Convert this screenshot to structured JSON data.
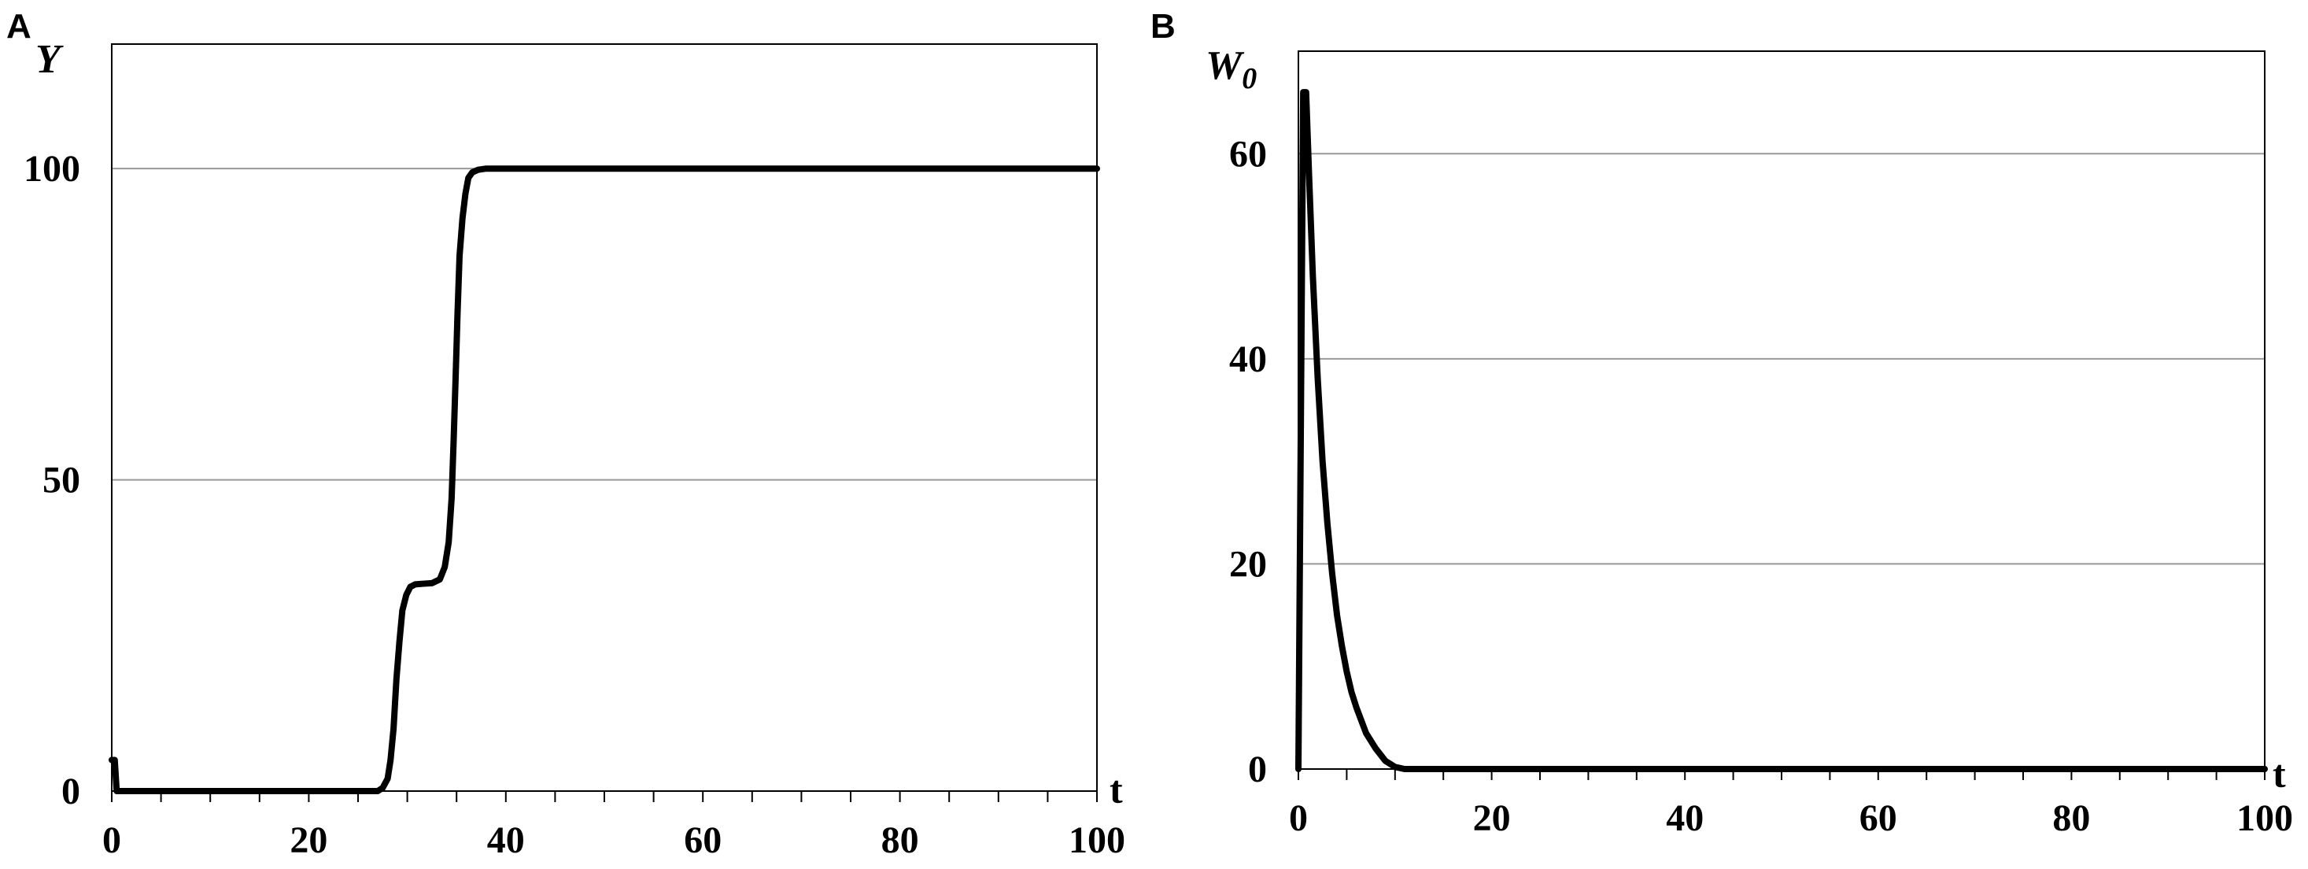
{
  "chart_data": [
    {
      "panel_label": "A",
      "type": "line",
      "title": "",
      "xlabel": "t",
      "ylabel": "Y",
      "xlim": [
        0,
        100
      ],
      "ylim": [
        0,
        100
      ],
      "ylim_display_max": 120,
      "x_ticks": [
        0,
        20,
        40,
        60,
        80,
        100
      ],
      "x_tick_labels": [
        "0",
        "20",
        "40",
        "60",
        "80",
        "100"
      ],
      "x_minor_step": 5,
      "y_ticks": [
        0,
        50,
        100
      ],
      "y_tick_labels": [
        "0",
        "50",
        "100"
      ],
      "grid": true,
      "line_color": "#000000",
      "grid_color": "#999999",
      "series": [
        {
          "x": [
            0,
            0.3,
            0.5,
            1,
            10,
            20,
            27,
            27.5,
            28,
            28.3,
            28.6,
            28.9,
            29.2,
            29.5,
            29.9,
            30.3,
            30.8,
            31.5,
            32.5,
            33.3,
            33.8,
            34.2,
            34.5,
            34.7,
            34.9,
            35.1,
            35.3,
            35.6,
            35.9,
            36.2,
            36.6,
            37.2,
            38,
            40,
            60,
            80,
            100
          ],
          "y": [
            5,
            5,
            0,
            0,
            0,
            0,
            0,
            0.5,
            2,
            5,
            10,
            18,
            24,
            29,
            31.5,
            32.8,
            33.2,
            33.3,
            33.4,
            34,
            36,
            40,
            47,
            56,
            66,
            77,
            86,
            92,
            96,
            98.5,
            99.4,
            99.8,
            100,
            100,
            100,
            100,
            100
          ]
        }
      ]
    },
    {
      "panel_label": "B",
      "type": "line",
      "title": "",
      "xlabel": "t",
      "ylabel": "W",
      "ylabel_sub": "0",
      "xlim": [
        0,
        100
      ],
      "ylim": [
        0,
        70
      ],
      "x_ticks": [
        0,
        20,
        40,
        60,
        80,
        100
      ],
      "x_tick_labels": [
        "0",
        "20",
        "40",
        "60",
        "80",
        "100"
      ],
      "x_minor_step": 5,
      "y_ticks": [
        0,
        20,
        40,
        60
      ],
      "y_tick_labels": [
        "0",
        "20",
        "40",
        "60"
      ],
      "grid": true,
      "line_color": "#000000",
      "grid_color": "#999999",
      "series": [
        {
          "x": [
            0,
            0.5,
            0.8,
            1.1,
            1.5,
            2,
            2.5,
            3,
            3.5,
            4,
            4.5,
            5,
            5.5,
            6,
            7,
            8,
            9,
            10,
            11,
            20,
            40,
            60,
            80,
            100
          ],
          "y": [
            0,
            66,
            66,
            58,
            48,
            38,
            30,
            24,
            19,
            15,
            12,
            9.5,
            7.5,
            6,
            3.5,
            2,
            0.8,
            0.2,
            0,
            0,
            0,
            0,
            0,
            0
          ]
        }
      ]
    }
  ]
}
